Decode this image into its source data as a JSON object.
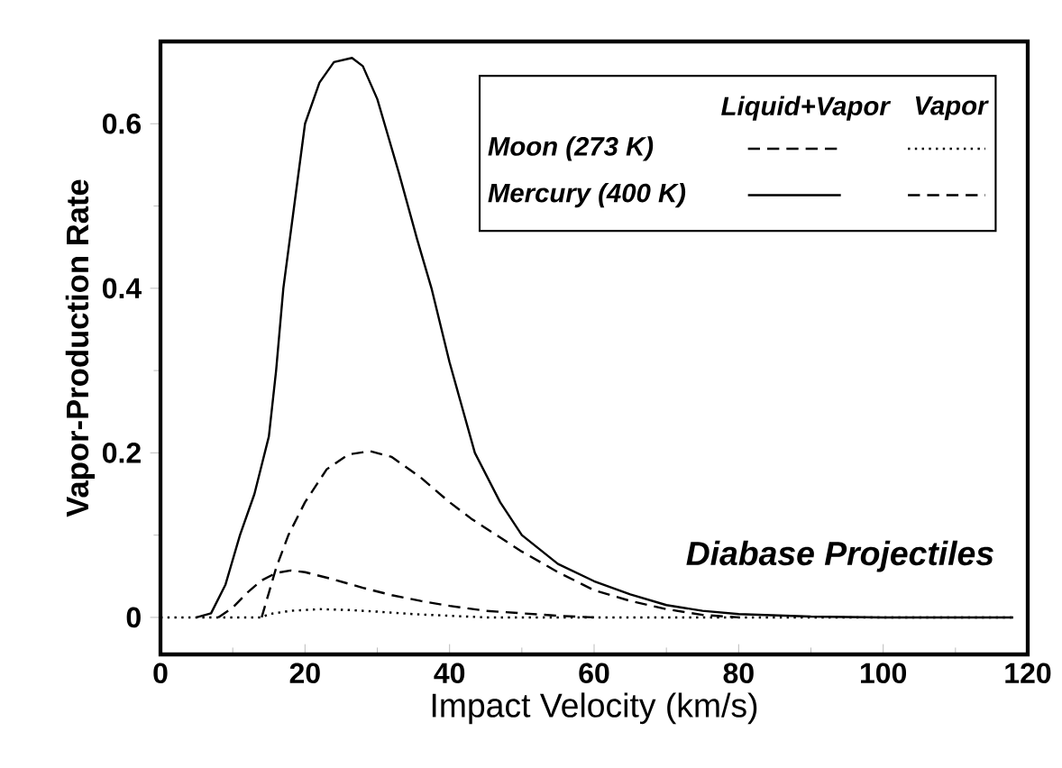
{
  "chart_data": {
    "type": "line",
    "xlabel": "Impact Velocity (km/s)",
    "ylabel": "Vapor-Production Rate",
    "xlim": [
      0,
      120
    ],
    "ylim": [
      -0.045,
      0.7
    ],
    "xticks": [
      0,
      20,
      40,
      60,
      80,
      100,
      120
    ],
    "yticks": [
      0,
      0.2,
      0.4,
      0.6
    ],
    "annotations": [
      "Liquid+Vapor",
      "Vapor",
      "Moon (273 K)",
      "Mercury (400 K)",
      "Diabase Projectiles"
    ],
    "series": [
      {
        "color": "#000000",
        "line_style": "dashed",
        "x": [
          8,
          10,
          12,
          14,
          16,
          18,
          20,
          24,
          28,
          32,
          36,
          40,
          45,
          50,
          55,
          60
        ],
        "values": [
          0,
          0.012,
          0.03,
          0.045,
          0.054,
          0.057,
          0.055,
          0.046,
          0.036,
          0.027,
          0.02,
          0.014,
          0.008,
          0.005,
          0.002,
          0
        ]
      },
      {
        "color": "#000000",
        "line_style": "dotted",
        "x": [
          0,
          14,
          15,
          18,
          22,
          26,
          30,
          35,
          40,
          45,
          118
        ],
        "values": [
          0,
          0,
          0.004,
          0.008,
          0.01,
          0.009,
          0.007,
          0.004,
          0.002,
          0,
          0
        ]
      },
      {
        "color": "#000000",
        "line_style": "solid",
        "x": [
          5,
          7,
          9,
          11,
          13,
          15,
          16,
          17,
          18.5,
          20,
          22,
          24,
          26.5,
          28,
          30,
          31,
          33,
          35.5,
          37.5,
          40,
          43.5,
          47,
          50,
          55,
          60,
          65,
          70,
          75,
          80,
          90,
          100,
          118
        ],
        "values": [
          0,
          0.005,
          0.04,
          0.1,
          0.15,
          0.22,
          0.3,
          0.4,
          0.5,
          0.6,
          0.65,
          0.675,
          0.68,
          0.67,
          0.63,
          0.6,
          0.54,
          0.46,
          0.4,
          0.31,
          0.2,
          0.14,
          0.1,
          0.065,
          0.044,
          0.028,
          0.015,
          0.008,
          0.004,
          0.001,
          0,
          0
        ]
      },
      {
        "color": "#000000",
        "line_style": "dashed",
        "x": [
          14,
          15,
          16,
          17.7,
          20,
          23,
          26,
          29,
          32,
          36,
          40,
          43,
          46.5,
          50,
          55,
          60,
          65,
          70,
          75,
          80
        ],
        "values": [
          0,
          0.03,
          0.06,
          0.1,
          0.14,
          0.18,
          0.198,
          0.202,
          0.195,
          0.17,
          0.14,
          0.12,
          0.1,
          0.08,
          0.055,
          0.033,
          0.02,
          0.01,
          0.003,
          0
        ]
      }
    ]
  }
}
